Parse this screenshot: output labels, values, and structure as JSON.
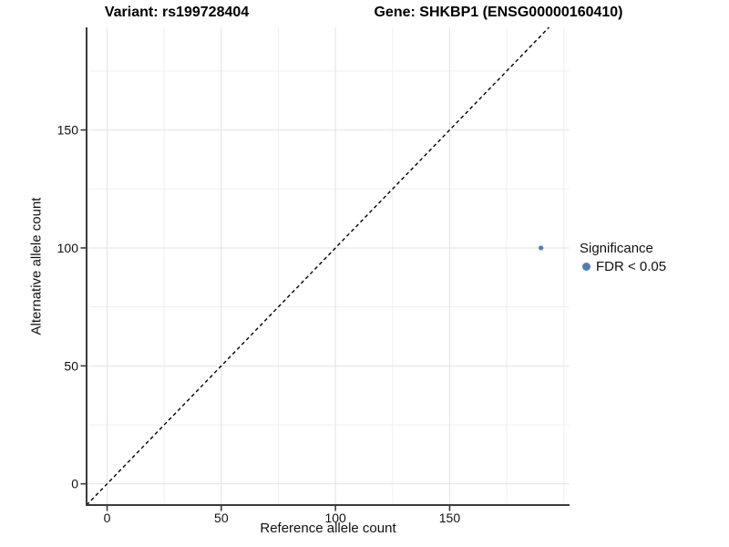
{
  "chart_data": {
    "type": "scatter",
    "titles": {
      "variant": "Variant: rs199728404",
      "gene": "Gene: SHKBP1 (ENSG00000160410)"
    },
    "xlabel": "Reference allele count",
    "ylabel": "Alternative allele count",
    "xlim": [
      -9,
      202.5
    ],
    "ylim": [
      -9,
      193.5
    ],
    "x_major_ticks": [
      0,
      50,
      100,
      150
    ],
    "y_major_ticks": [
      0,
      50,
      100,
      150
    ],
    "x_minor_ticks": [
      25,
      75,
      125,
      175,
      200
    ],
    "y_minor_ticks": [
      25,
      75,
      125,
      175
    ],
    "grid": true,
    "identity_line": {
      "style": "dashed",
      "slope": 1,
      "intercept": 0
    },
    "points": [
      {
        "x": 190,
        "y": 100,
        "significance": "FDR < 0.05"
      }
    ],
    "legend": {
      "title": "Significance",
      "position": "right",
      "entries": [
        {
          "label": "FDR < 0.05",
          "color": "#4d7eb3"
        }
      ]
    },
    "colors": {
      "point": "#4d7eb3",
      "identity_line": "#000000",
      "axis_line": "#3a3a3a",
      "tick_text": "#111111",
      "grid_major": "#e2e2e2",
      "grid_minor": "#efefef"
    }
  }
}
